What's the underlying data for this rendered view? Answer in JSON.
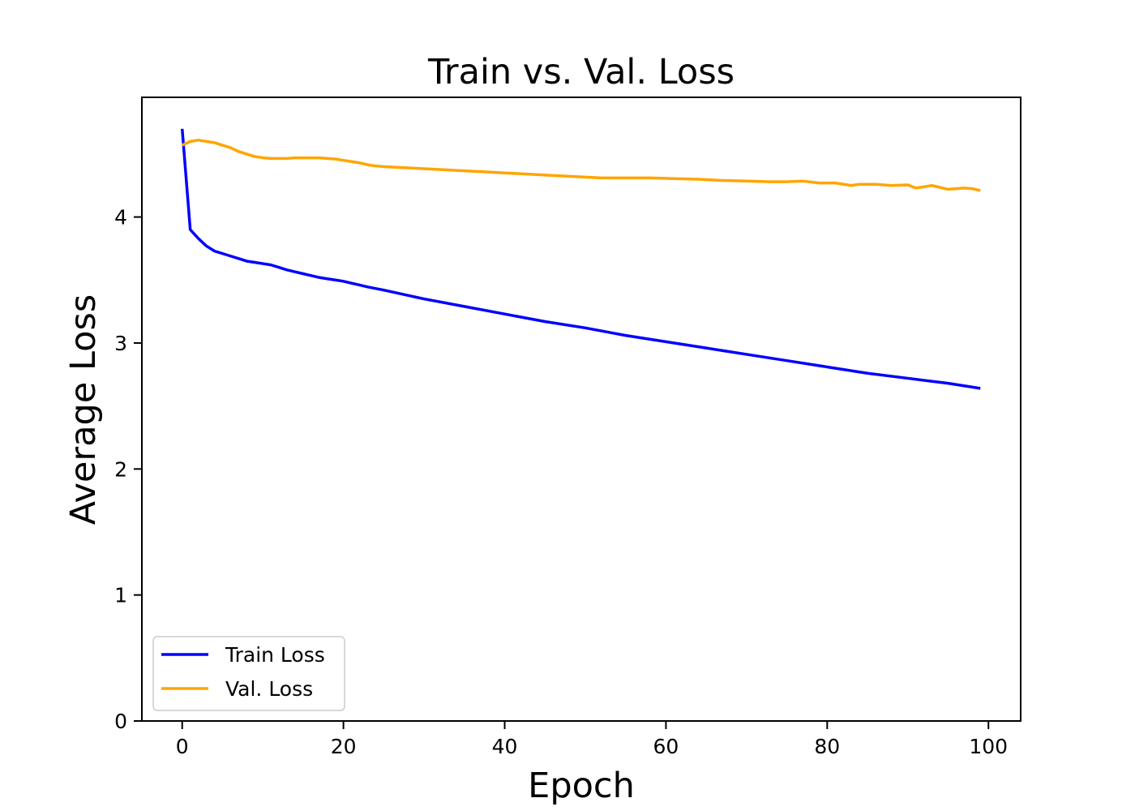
{
  "chart_data": {
    "type": "line",
    "title": "Train vs. Val. Loss",
    "xlabel": "Epoch",
    "ylabel": "Average Loss",
    "xlim": [
      -5,
      104
    ],
    "ylim": [
      0,
      4.95
    ],
    "xticks": [
      0,
      20,
      40,
      60,
      80,
      100
    ],
    "yticks": [
      0,
      1,
      2,
      3,
      4
    ],
    "grid": false,
    "legend_position": "lower-left",
    "series": [
      {
        "name": "Train Loss",
        "color": "#0000ff",
        "points": [
          [
            0,
            4.7
          ],
          [
            1,
            3.9
          ],
          [
            2,
            3.83
          ],
          [
            3,
            3.77
          ],
          [
            4,
            3.73
          ],
          [
            5,
            3.71
          ],
          [
            6,
            3.69
          ],
          [
            7,
            3.67
          ],
          [
            8,
            3.65
          ],
          [
            9,
            3.64
          ],
          [
            10,
            3.63
          ],
          [
            11,
            3.62
          ],
          [
            12,
            3.6
          ],
          [
            13,
            3.58
          ],
          [
            14,
            3.565
          ],
          [
            15,
            3.55
          ],
          [
            16,
            3.535
          ],
          [
            17,
            3.52
          ],
          [
            18,
            3.51
          ],
          [
            19,
            3.5
          ],
          [
            20,
            3.49
          ],
          [
            21,
            3.475
          ],
          [
            22,
            3.46
          ],
          [
            23,
            3.445
          ],
          [
            25,
            3.42
          ],
          [
            30,
            3.35
          ],
          [
            35,
            3.29
          ],
          [
            40,
            3.23
          ],
          [
            45,
            3.17
          ],
          [
            50,
            3.12
          ],
          [
            55,
            3.06
          ],
          [
            60,
            3.01
          ],
          [
            65,
            2.96
          ],
          [
            70,
            2.91
          ],
          [
            75,
            2.86
          ],
          [
            80,
            2.81
          ],
          [
            85,
            2.76
          ],
          [
            90,
            2.72
          ],
          [
            95,
            2.68
          ],
          [
            99,
            2.64
          ]
        ]
      },
      {
        "name": "Val. Loss",
        "color": "#ffa500",
        "points": [
          [
            0,
            4.57
          ],
          [
            1,
            4.6
          ],
          [
            2,
            4.61
          ],
          [
            3,
            4.6
          ],
          [
            4,
            4.59
          ],
          [
            5,
            4.57
          ],
          [
            6,
            4.55
          ],
          [
            7,
            4.52
          ],
          [
            8,
            4.5
          ],
          [
            9,
            4.48
          ],
          [
            10,
            4.47
          ],
          [
            11,
            4.465
          ],
          [
            12,
            4.465
          ],
          [
            13,
            4.465
          ],
          [
            14,
            4.47
          ],
          [
            15,
            4.47
          ],
          [
            16,
            4.47
          ],
          [
            17,
            4.47
          ],
          [
            18,
            4.465
          ],
          [
            19,
            4.46
          ],
          [
            20,
            4.45
          ],
          [
            21,
            4.44
          ],
          [
            22,
            4.43
          ],
          [
            23,
            4.415
          ],
          [
            24,
            4.405
          ],
          [
            25,
            4.4
          ],
          [
            28,
            4.39
          ],
          [
            31,
            4.38
          ],
          [
            34,
            4.37
          ],
          [
            37,
            4.36
          ],
          [
            40,
            4.35
          ],
          [
            43,
            4.34
          ],
          [
            46,
            4.33
          ],
          [
            49,
            4.32
          ],
          [
            52,
            4.31
          ],
          [
            55,
            4.31
          ],
          [
            58,
            4.31
          ],
          [
            61,
            4.305
          ],
          [
            64,
            4.3
          ],
          [
            67,
            4.29
          ],
          [
            70,
            4.285
          ],
          [
            73,
            4.28
          ],
          [
            75,
            4.28
          ],
          [
            77,
            4.285
          ],
          [
            79,
            4.27
          ],
          [
            81,
            4.27
          ],
          [
            83,
            4.25
          ],
          [
            84,
            4.26
          ],
          [
            86,
            4.26
          ],
          [
            88,
            4.25
          ],
          [
            90,
            4.255
          ],
          [
            91,
            4.23
          ],
          [
            93,
            4.25
          ],
          [
            95,
            4.22
          ],
          [
            97,
            4.23
          ],
          [
            98,
            4.225
          ],
          [
            99,
            4.21
          ]
        ]
      }
    ]
  }
}
